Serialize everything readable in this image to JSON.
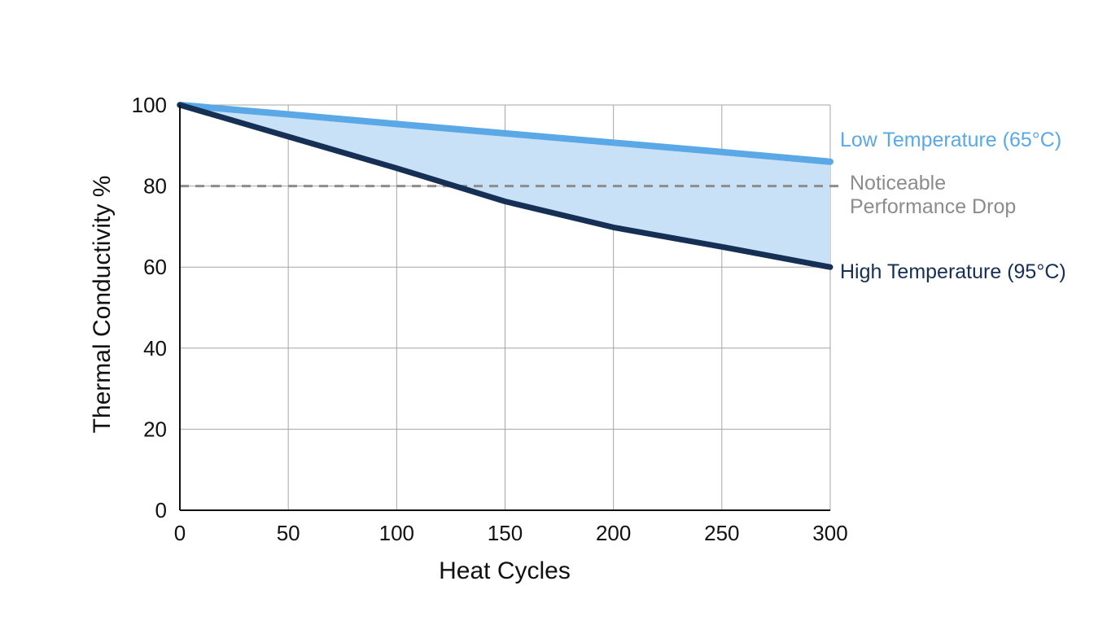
{
  "chart_data": {
    "type": "line",
    "title": "",
    "xlabel": "Heat Cycles",
    "ylabel": "Thermal Conductivity %",
    "xlim": [
      0,
      300
    ],
    "ylim": [
      0,
      100
    ],
    "x_ticks": [
      0,
      50,
      100,
      150,
      200,
      250,
      300
    ],
    "y_ticks": [
      0,
      20,
      40,
      60,
      80,
      100
    ],
    "grid": true,
    "fill_between_series": true,
    "fill_color": "#c8e1f7",
    "grid_color": "#a6a6a6",
    "axis_color": "#111111",
    "x": [
      0,
      50,
      100,
      150,
      200,
      250,
      300
    ],
    "series": [
      {
        "name": "Low Temperature (65°C)",
        "color": "#5aa8e6",
        "values": [
          100,
          97.7,
          95.3,
          93.0,
          90.7,
          88.4,
          86.0
        ]
      },
      {
        "name": "High Temperature (95°C)",
        "color": "#152f55",
        "values": [
          100,
          92.2,
          84.4,
          76.2,
          69.8,
          65.0,
          60.0
        ]
      }
    ],
    "threshold": {
      "value": 80,
      "label_line1": "Noticeable",
      "label_line2": "Performance Drop",
      "color": "#8c8c8c",
      "style": "dashed"
    }
  }
}
